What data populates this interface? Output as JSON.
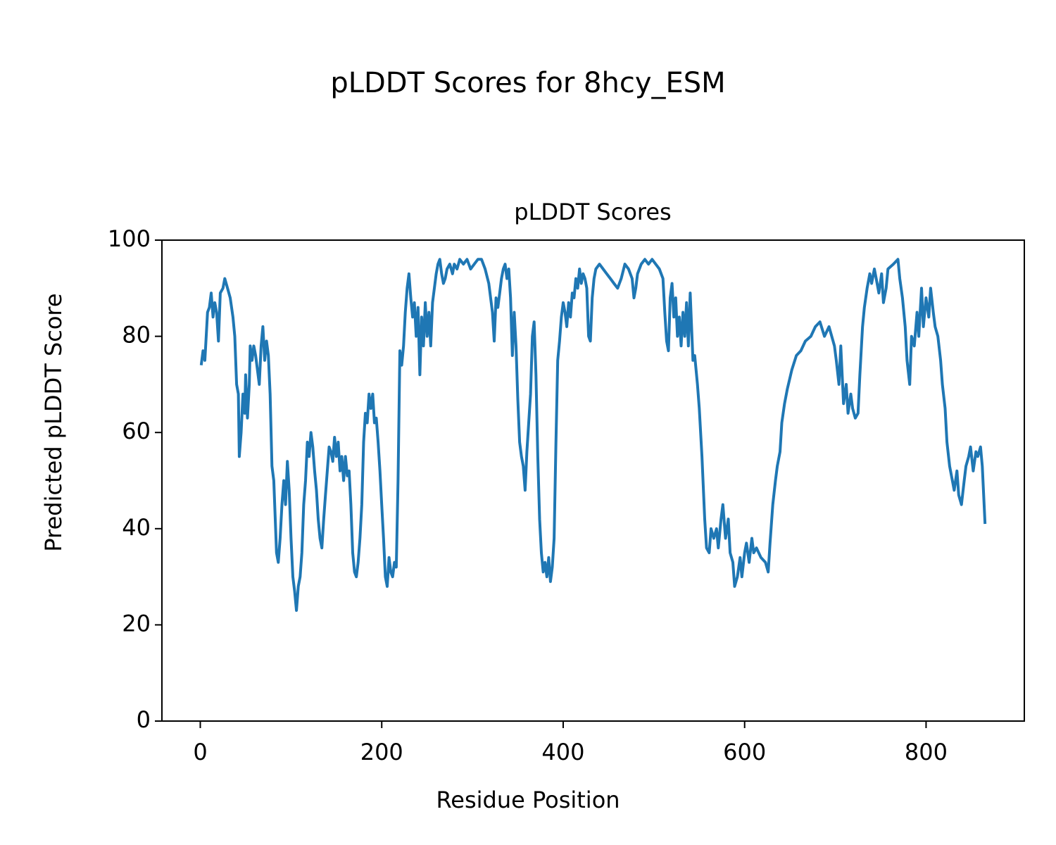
{
  "chart_data": {
    "type": "line",
    "suptitle": "pLDDT Scores for 8hcy_ESM",
    "title": "pLDDT Scores",
    "xlabel": "Residue Position",
    "ylabel": "Predicted pLDDT Score",
    "x": [
      1,
      3,
      5,
      8,
      10,
      12,
      14,
      16,
      18,
      20,
      22,
      25,
      27,
      30,
      33,
      36,
      38,
      40,
      42,
      43,
      45,
      47,
      49,
      50,
      52,
      54,
      55,
      57,
      59,
      61,
      63,
      65,
      67,
      69,
      71,
      73,
      75,
      77,
      79,
      81,
      83,
      84,
      86,
      88,
      90,
      92,
      94,
      96,
      98,
      100,
      102,
      104,
      106,
      108,
      110,
      112,
      114,
      116,
      118,
      120,
      122,
      124,
      126,
      128,
      130,
      132,
      134,
      136,
      138,
      140,
      142,
      144,
      146,
      148,
      150,
      152,
      154,
      156,
      158,
      160,
      162,
      164,
      166,
      168,
      170,
      172,
      174,
      176,
      178,
      180,
      182,
      184,
      186,
      188,
      190,
      192,
      194,
      196,
      198,
      200,
      202,
      204,
      206,
      208,
      210,
      212,
      214,
      216,
      218,
      220,
      222,
      224,
      226,
      228,
      230,
      232,
      234,
      236,
      238,
      240,
      242,
      244,
      246,
      248,
      250,
      252,
      254,
      256,
      258,
      260,
      262,
      264,
      266,
      268,
      270,
      272,
      275,
      278,
      280,
      283,
      286,
      290,
      294,
      298,
      302,
      306,
      310,
      314,
      318,
      322,
      324,
      326,
      328,
      330,
      332,
      334,
      336,
      338,
      340,
      342,
      344,
      346,
      348,
      350,
      352,
      354,
      356,
      358,
      360,
      362,
      364,
      366,
      368,
      370,
      372,
      374,
      376,
      378,
      380,
      382,
      384,
      386,
      388,
      390,
      392,
      394,
      396,
      398,
      400,
      402,
      404,
      406,
      408,
      410,
      412,
      414,
      416,
      418,
      420,
      422,
      424,
      426,
      428,
      430,
      432,
      434,
      436,
      440,
      444,
      448,
      452,
      456,
      460,
      464,
      468,
      472,
      476,
      478,
      480,
      482,
      486,
      490,
      494,
      498,
      502,
      506,
      510,
      512,
      514,
      516,
      518,
      520,
      522,
      524,
      526,
      528,
      530,
      532,
      534,
      536,
      538,
      540,
      543,
      545,
      548,
      550,
      553,
      556,
      558,
      561,
      563,
      566,
      569,
      571,
      574,
      576,
      579,
      582,
      584,
      587,
      589,
      592,
      595,
      597,
      600,
      602,
      605,
      608,
      610,
      613,
      618,
      623,
      626,
      628,
      631,
      634,
      636,
      639,
      641,
      644,
      647,
      652,
      657,
      662,
      667,
      673,
      678,
      683,
      688,
      693,
      699,
      701,
      704,
      706,
      709,
      712,
      714,
      717,
      719,
      722,
      725,
      727,
      730,
      732,
      735,
      738,
      740,
      743,
      745,
      748,
      751,
      753,
      756,
      758,
      764,
      769,
      771,
      774,
      777,
      779,
      782,
      784,
      787,
      790,
      792,
      795,
      797,
      800,
      803,
      805,
      808,
      810,
      813,
      816,
      818,
      821,
      823,
      826,
      829,
      831,
      834,
      836,
      839,
      842,
      844,
      847,
      849,
      852,
      855,
      857,
      860,
      862,
      865
    ],
    "series": [
      {
        "name": "pLDDT",
        "color": "#1f77b4",
        "values": [
          74,
          77,
          75,
          85,
          86,
          89,
          84,
          87,
          85,
          79,
          89,
          90,
          92,
          90,
          88,
          84,
          80,
          70,
          68,
          55,
          60,
          68,
          64,
          72,
          63,
          70,
          78,
          75,
          78,
          76,
          73,
          70,
          78,
          82,
          75,
          79,
          76,
          68,
          53,
          50,
          40,
          35,
          33,
          38,
          45,
          50,
          45,
          54,
          48,
          38,
          30,
          27,
          23,
          28,
          30,
          35,
          45,
          50,
          58,
          55,
          60,
          57,
          52,
          48,
          42,
          38,
          36,
          42,
          47,
          52,
          57,
          56,
          54,
          59,
          55,
          58,
          52,
          55,
          50,
          55,
          51,
          52,
          45,
          35,
          31,
          30,
          33,
          38,
          45,
          58,
          64,
          62,
          68,
          65,
          68,
          62,
          63,
          58,
          52,
          45,
          38,
          30,
          28,
          34,
          31,
          30,
          33,
          32,
          50,
          77,
          74,
          78,
          85,
          90,
          93,
          88,
          84,
          87,
          80,
          86,
          72,
          84,
          78,
          87,
          80,
          85,
          78,
          87,
          90,
          93,
          95,
          96,
          93,
          91,
          92,
          94,
          95,
          93,
          95,
          94,
          96,
          95,
          96,
          94,
          95,
          96,
          96,
          94,
          91,
          85,
          79,
          88,
          86,
          89,
          92,
          94,
          95,
          92,
          94,
          88,
          76,
          85,
          78,
          67,
          58,
          55,
          53,
          48,
          56,
          62,
          68,
          80,
          83,
          72,
          55,
          42,
          35,
          31,
          33,
          30,
          34,
          29,
          32,
          38,
          58,
          75,
          79,
          84,
          87,
          85,
          82,
          87,
          84,
          89,
          88,
          92,
          90,
          94,
          91,
          93,
          92,
          90,
          80,
          79,
          88,
          92,
          94,
          95,
          94,
          93,
          92,
          91,
          90,
          92,
          95,
          94,
          92,
          88,
          90,
          93,
          95,
          96,
          95,
          96,
          95,
          94,
          92,
          85,
          79,
          77,
          88,
          91,
          84,
          88,
          80,
          84,
          78,
          85,
          80,
          87,
          78,
          89,
          75,
          76,
          70,
          65,
          55,
          42,
          36,
          35,
          40,
          38,
          40,
          36,
          42,
          45,
          38,
          42,
          35,
          33,
          28,
          30,
          34,
          30,
          35,
          37,
          33,
          38,
          35,
          36,
          34,
          33,
          31,
          37,
          45,
          50,
          53,
          56,
          62,
          66,
          69,
          73,
          76,
          77,
          79,
          80,
          82,
          83,
          80,
          82,
          78,
          75,
          70,
          78,
          66,
          70,
          64,
          68,
          65,
          63,
          64,
          72,
          82,
          86,
          90,
          93,
          91,
          94,
          92,
          89,
          93,
          87,
          90,
          94,
          95,
          96,
          92,
          88,
          82,
          75,
          70,
          80,
          78,
          85,
          80,
          90,
          82,
          88,
          84,
          90,
          85,
          82,
          80,
          75,
          70,
          65,
          58,
          53,
          50,
          48,
          52,
          47,
          45,
          50,
          53,
          55,
          57,
          52,
          56,
          55,
          57,
          53,
          41
        ]
      }
    ],
    "xlim": [
      -42.3,
      908.3
    ],
    "ylim": [
      0,
      100
    ],
    "xticks": [
      0,
      200,
      400,
      600,
      800
    ],
    "yticks": [
      0,
      20,
      40,
      60,
      80,
      100
    ],
    "grid": false
  }
}
